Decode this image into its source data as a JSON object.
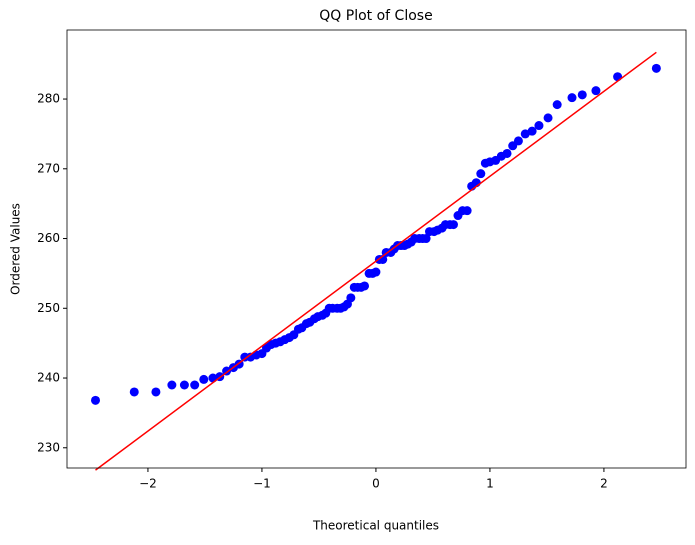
{
  "chart_data": {
    "type": "scatter",
    "title": "QQ Plot of Close",
    "x_label": "Theoretical quantiles",
    "y_label": "Ordered Values",
    "xlim": [
      -2.71,
      2.72
    ],
    "ylim": [
      227.1,
      289.9
    ],
    "xticks": [
      {
        "value": -2,
        "label": "−2"
      },
      {
        "value": -1,
        "label": "−1"
      },
      0,
      1,
      2
    ],
    "yticks": [
      230,
      240,
      250,
      260,
      270,
      280
    ],
    "series": [
      {
        "color": "#0000ff",
        "x": [
          -2.46,
          -2.12,
          -1.93,
          -1.79,
          -1.68,
          -1.59,
          -1.51,
          -1.43,
          -1.37,
          -1.31,
          -1.25,
          -1.2,
          -1.15,
          -1.1,
          -1.05,
          -1.0,
          -0.96,
          -0.92,
          -0.88,
          -0.84,
          -0.8,
          -0.76,
          -0.72,
          -0.68,
          -0.65,
          -0.61,
          -0.58,
          -0.54,
          -0.51,
          -0.47,
          -0.44,
          -0.41,
          -0.38,
          -0.34,
          -0.31,
          -0.28,
          -0.25,
          -0.22,
          -0.19,
          -0.16,
          -0.13,
          -0.1,
          -0.06,
          -0.03,
          0.0,
          0.03,
          0.06,
          0.09,
          0.13,
          0.16,
          0.19,
          0.22,
          0.25,
          0.28,
          0.31,
          0.34,
          0.38,
          0.41,
          0.44,
          0.47,
          0.51,
          0.54,
          0.58,
          0.61,
          0.65,
          0.68,
          0.72,
          0.76,
          0.8,
          0.84,
          0.88,
          0.92,
          0.96,
          1.0,
          1.05,
          1.1,
          1.15,
          1.2,
          1.25,
          1.31,
          1.37,
          1.43,
          1.51,
          1.59,
          1.72,
          1.81,
          1.93,
          2.12,
          2.46
        ],
        "values": [
          236.8,
          238,
          238,
          239,
          239,
          239,
          239.8,
          240,
          240.2,
          241,
          241.5,
          242,
          243,
          243,
          243.3,
          243.5,
          244.3,
          244.8,
          245,
          245.2,
          245.5,
          245.8,
          246.2,
          247,
          247.2,
          247.8,
          248,
          248.5,
          248.8,
          249,
          249.3,
          250,
          250,
          250,
          250,
          250.2,
          250.6,
          251.5,
          253,
          253,
          253,
          253.2,
          255,
          255,
          255.2,
          257,
          257,
          258,
          258,
          258.5,
          259,
          259,
          259,
          259.2,
          259.5,
          260,
          260,
          260,
          260,
          261,
          261,
          261.2,
          261.5,
          262,
          262,
          262,
          263.3,
          264,
          264,
          267.5,
          268,
          269.3,
          270.8,
          271,
          271.2,
          271.8,
          272.2,
          273.3,
          274,
          275,
          275.4,
          276.2,
          277.3,
          279.2,
          280.2,
          280.6,
          281.2,
          283.2,
          284.4
        ]
      }
    ],
    "fit_line": {
      "color": "#ff0000",
      "x": [
        -2.46,
        2.46
      ],
      "values": [
        226.8,
        286.7
      ]
    }
  }
}
